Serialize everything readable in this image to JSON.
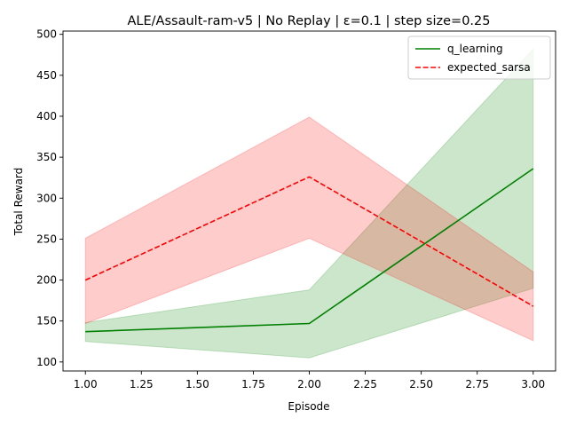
{
  "chart_data": {
    "type": "line",
    "title": "ALE/Assault-ram-v5 | No Replay | ε=0.1 | step size=0.25",
    "xlabel": "Episode",
    "ylabel": "Total Reward",
    "xlim": [
      0.9,
      3.1
    ],
    "ylim": [
      89,
      504
    ],
    "xticks": [
      1.0,
      1.25,
      1.5,
      1.75,
      2.0,
      2.25,
      2.5,
      2.75,
      3.0
    ],
    "xtick_labels": [
      "1.00",
      "1.25",
      "1.50",
      "1.75",
      "2.00",
      "2.25",
      "2.50",
      "2.75",
      "3.00"
    ],
    "yticks": [
      100,
      150,
      200,
      250,
      300,
      350,
      400,
      450,
      500
    ],
    "ytick_labels": [
      "100",
      "150",
      "200",
      "250",
      "300",
      "350",
      "400",
      "450",
      "500"
    ],
    "grid": false,
    "legend_position": "top-right",
    "x": [
      1,
      2,
      3
    ],
    "series": [
      {
        "name": "q_learning",
        "values": [
          137,
          147,
          336
        ],
        "lower": [
          125,
          105,
          190
        ],
        "upper": [
          148,
          188,
          482
        ],
        "color": "#008000",
        "fill_color": "#008000",
        "linestyle": "solid"
      },
      {
        "name": "expected_sarsa",
        "values": [
          200,
          326,
          168
        ],
        "lower": [
          147,
          251,
          126
        ],
        "upper": [
          251,
          399,
          210
        ],
        "color": "#ff0000",
        "fill_color": "#ff0000",
        "linestyle": "dashed"
      }
    ]
  }
}
